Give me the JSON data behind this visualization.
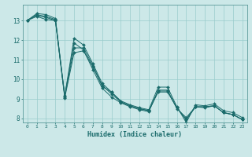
{
  "title": "",
  "xlabel": "Humidex (Indice chaleur)",
  "background_color": "#cce8e8",
  "grid_color": "#99cccc",
  "line_color": "#1a6b6b",
  "xlim": [
    -0.5,
    23.5
  ],
  "ylim": [
    7.8,
    13.8
  ],
  "xticks": [
    0,
    1,
    2,
    3,
    4,
    5,
    6,
    7,
    8,
    9,
    10,
    11,
    12,
    13,
    14,
    15,
    16,
    17,
    18,
    19,
    20,
    21,
    22,
    23
  ],
  "yticks": [
    8,
    9,
    10,
    11,
    12,
    13
  ],
  "series": [
    [
      13.0,
      13.35,
      13.3,
      13.1,
      9.15,
      12.1,
      11.75,
      10.8,
      9.8,
      9.35,
      8.9,
      8.7,
      8.55,
      8.45,
      9.6,
      9.6,
      8.6,
      7.8,
      8.7,
      8.65,
      8.75,
      8.4,
      8.3,
      8.05
    ],
    [
      13.0,
      13.3,
      13.2,
      13.05,
      9.15,
      11.85,
      11.5,
      10.5,
      9.55,
      9.1,
      8.8,
      8.6,
      8.45,
      8.35,
      9.45,
      9.45,
      8.5,
      8.05,
      8.6,
      8.55,
      8.65,
      8.3,
      8.2,
      7.95
    ],
    [
      13.0,
      13.25,
      13.15,
      13.0,
      9.1,
      11.6,
      11.6,
      10.7,
      9.7,
      9.25,
      8.85,
      8.65,
      8.5,
      8.4,
      9.4,
      9.4,
      8.55,
      7.95,
      8.6,
      8.6,
      8.65,
      8.3,
      8.2,
      7.95
    ],
    [
      13.0,
      13.2,
      13.05,
      13.0,
      9.05,
      11.35,
      11.45,
      10.65,
      9.65,
      9.35,
      8.85,
      8.65,
      8.5,
      8.4,
      9.35,
      9.35,
      8.55,
      7.95,
      8.6,
      8.6,
      8.65,
      8.3,
      8.2,
      7.95
    ]
  ]
}
